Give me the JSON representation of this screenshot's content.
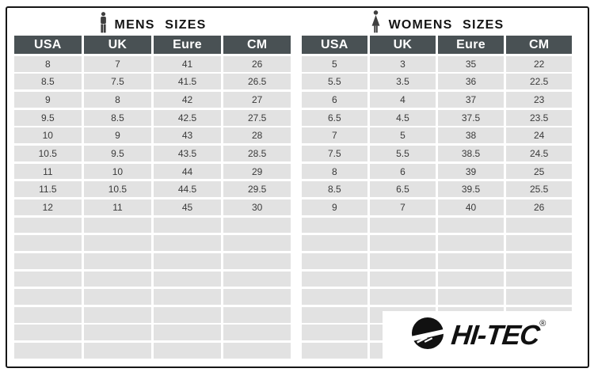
{
  "chart_data": [
    {
      "type": "table",
      "title": "MENS SIZES",
      "icon": "man-icon",
      "columns": [
        "USA",
        "UK",
        "Eure",
        "CM"
      ],
      "rows": [
        [
          "8",
          "7",
          "41",
          "26"
        ],
        [
          "8.5",
          "7.5",
          "41.5",
          "26.5"
        ],
        [
          "9",
          "8",
          "42",
          "27"
        ],
        [
          "9.5",
          "8.5",
          "42.5",
          "27.5"
        ],
        [
          "10",
          "9",
          "43",
          "28"
        ],
        [
          "10.5",
          "9.5",
          "43.5",
          "28.5"
        ],
        [
          "11",
          "10",
          "44",
          "29"
        ],
        [
          "11.5",
          "10.5",
          "44.5",
          "29.5"
        ],
        [
          "12",
          "11",
          "45",
          "30"
        ]
      ],
      "empty_rows": 8
    },
    {
      "type": "table",
      "title": "WOMENS SIZES",
      "icon": "woman-icon",
      "columns": [
        "USA",
        "UK",
        "Eure",
        "CM"
      ],
      "rows": [
        [
          "5",
          "3",
          "35",
          "22"
        ],
        [
          "5.5",
          "3.5",
          "36",
          "22.5"
        ],
        [
          "6",
          "4",
          "37",
          "23"
        ],
        [
          "6.5",
          "4.5",
          "37.5",
          "23.5"
        ],
        [
          "7",
          "5",
          "38",
          "24"
        ],
        [
          "7.5",
          "5.5",
          "38.5",
          "24.5"
        ],
        [
          "8",
          "6",
          "39",
          "25"
        ],
        [
          "8.5",
          "6.5",
          "39.5",
          "25.5"
        ],
        [
          "9",
          "7",
          "40",
          "26"
        ]
      ],
      "empty_rows": 8
    }
  ],
  "logo": {
    "brand": "HI-TEC",
    "registered_mark": "®",
    "icon": "hitec-circle-swoosh-icon"
  },
  "colors": {
    "header_bg": "#495154",
    "header_text": "#ffffff",
    "row_bg": "#e2e2e2",
    "cell_text": "#3a3a3a",
    "border": "#161616",
    "logo_bg": "#ffffff",
    "logo_ink": "#111111"
  }
}
